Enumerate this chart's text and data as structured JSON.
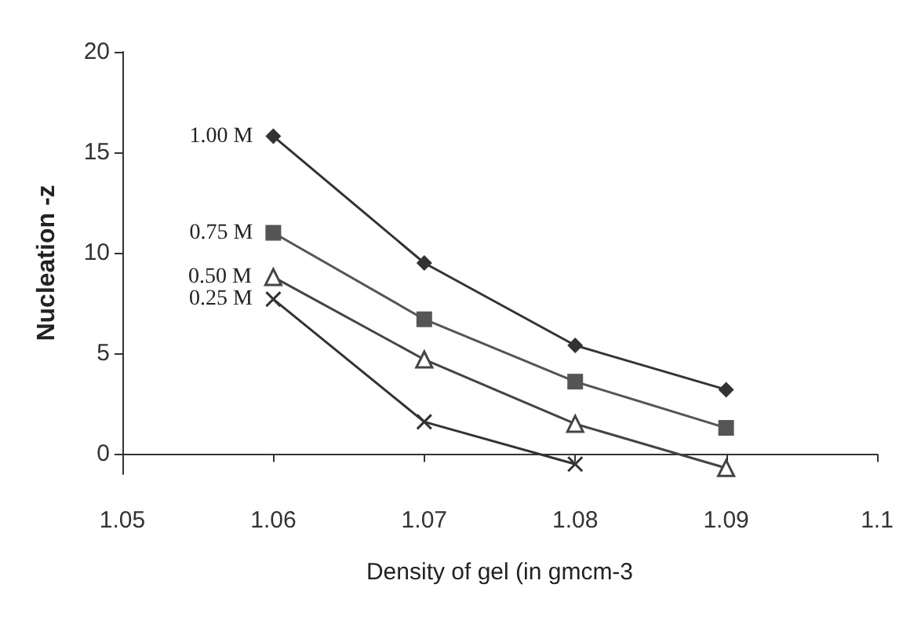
{
  "chart_data": {
    "type": "line",
    "xlabel": "Density of gel (in gmcm-3",
    "ylabel": "Nucleation -z",
    "x": [
      1.06,
      1.07,
      1.08,
      1.09
    ],
    "series": [
      {
        "name": "1.00 M",
        "color": "#333333",
        "marker": "diamond",
        "values": [
          15.8,
          9.5,
          5.4,
          3.2
        ]
      },
      {
        "name": "0.75 M",
        "color": "#555555",
        "marker": "square",
        "values": [
          11.0,
          6.7,
          3.6,
          1.3
        ]
      },
      {
        "name": "0.50 M",
        "color": "#444444",
        "marker": "triangle",
        "values": [
          8.8,
          4.7,
          1.5,
          -0.7
        ]
      },
      {
        "name": "0.25 M",
        "color": "#333333",
        "marker": "cross",
        "x": [
          1.06,
          1.07,
          1.08
        ],
        "values": [
          7.7,
          1.6,
          -0.5
        ]
      }
    ],
    "xlim": [
      1.05,
      1.1
    ],
    "xticks": [
      1.05,
      1.06,
      1.07,
      1.08,
      1.09,
      {
        "value": 1.1,
        "label": "1.1"
      }
    ],
    "ylim": [
      -1,
      20
    ],
    "yticks": [
      0,
      5,
      10,
      15,
      20
    ],
    "grid": false,
    "legend": false,
    "line_style": "solid"
  }
}
